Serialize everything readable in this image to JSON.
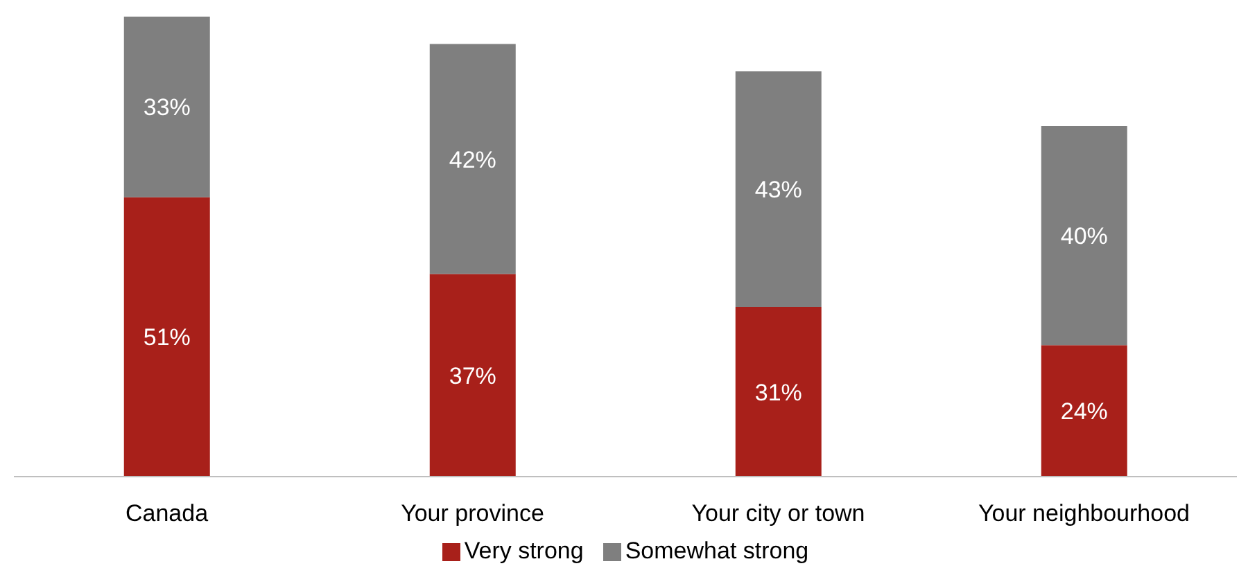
{
  "chart_data": {
    "type": "bar",
    "stacked": true,
    "legend": "bottom",
    "grid": false,
    "categories": [
      "Canada",
      "Your province",
      "Your city or town",
      "Your neighbourhood"
    ],
    "series": [
      {
        "name": "Very strong",
        "color": "#a8201a",
        "values": [
          51,
          37,
          31,
          24
        ],
        "value_labels": [
          "51%",
          "37%",
          "31%",
          "24%"
        ]
      },
      {
        "name": "Somewhat strong",
        "color": "#7f7f7f",
        "values": [
          33,
          42,
          43,
          40
        ],
        "value_labels": [
          "33%",
          "42%",
          "43%",
          "40%"
        ]
      }
    ]
  }
}
